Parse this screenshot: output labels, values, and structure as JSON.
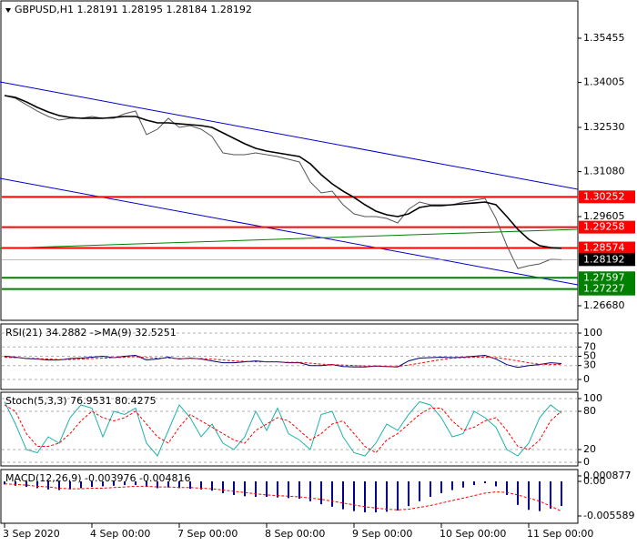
{
  "chart_data": [
    {
      "type": "line",
      "title": "GBPUSD,H1  1.28191 1.28195 1.28184 1.28192",
      "categories": [
        "3 Sep 2020",
        null,
        null,
        null,
        null,
        null,
        null,
        null,
        "4 Sep 00:00",
        null,
        null,
        null,
        null,
        null,
        null,
        null,
        "7 Sep 00:00",
        null,
        null,
        null,
        null,
        null,
        null,
        null,
        "8 Sep 00:00",
        null,
        null,
        null,
        null,
        null,
        null,
        null,
        "9 Sep 00:00",
        null,
        null,
        null,
        null,
        null,
        null,
        null,
        "10 Sep 00:00",
        null,
        null,
        null,
        null,
        null,
        null,
        null,
        "11 Sep 00:00",
        null,
        null,
        null
      ],
      "series": [
        {
          "color": "#555555",
          "values": [
            1.33575,
            1.33485,
            1.33276,
            1.33067,
            1.32888,
            1.32769,
            1.32829,
            1.32829,
            1.32888,
            1.32829,
            1.32829,
            1.32978,
            1.33067,
            1.32291,
            1.3247,
            1.32829,
            1.3253,
            1.3259,
            1.3247,
            1.32232,
            1.31694,
            1.31635,
            1.31635,
            1.31694,
            1.31635,
            1.31575,
            1.31485,
            1.31396,
            1.30739,
            1.30381,
            1.3044,
            1.29993,
            1.29694,
            1.29605,
            1.29605,
            1.29545,
            1.29396,
            1.29843,
            1.30082,
            1.29993,
            1.29993,
            1.29993,
            1.30082,
            1.30142,
            1.30202,
            1.29545,
            1.2865,
            1.27903,
            1.27993,
            1.28052,
            1.28202,
            1.28192
          ]
        },
        {
          "color": "#000000",
          "values": [
            1.33575,
            1.33515,
            1.33366,
            1.33187,
            1.33037,
            1.32918,
            1.32858,
            1.32829,
            1.32829,
            1.32829,
            1.32858,
            1.32888,
            1.32888,
            1.32769,
            1.32679,
            1.32679,
            1.32649,
            1.3262,
            1.3259,
            1.3253,
            1.32351,
            1.32172,
            1.31993,
            1.31843,
            1.31754,
            1.31694,
            1.31635,
            1.31575,
            1.31336,
            1.30978,
            1.30679,
            1.3044,
            1.30232,
            1.29993,
            1.29784,
            1.29664,
            1.29605,
            1.29694,
            1.29903,
            1.29963,
            1.29963,
            1.29993,
            1.30023,
            1.30052,
            1.30082,
            1.29993,
            1.29605,
            1.29187,
            1.28858,
            1.2865,
            1.2859,
            1.2856
          ]
        }
      ],
      "ylim": [
        1.26202,
        1.36709
      ],
      "yticks": [
        1.35455,
        1.34005,
        {
          "value": 1.3253,
          "label": "1.32530"
        },
        {
          "value": 1.3108,
          "label": "1.31080"
        },
        1.29605,
        {
          "value": 1.2668,
          "label": "1.26680"
        }
      ],
      "levels": [
        {
          "value": 1.30252,
          "color": "#ff0000"
        },
        {
          "value": 1.29258,
          "color": "#ff0000"
        },
        {
          "value": 1.28574,
          "color": "#ff0000"
        },
        {
          "value": 1.27597,
          "color": "#008000"
        },
        {
          "value": 1.27227,
          "color": "#008000"
        }
      ],
      "current_price": 1.28192,
      "trendlines": [
        {
          "start": 1.34022,
          "end": 1.305,
          "color": "#0000cc"
        },
        {
          "start": 1.30858,
          "end": 1.27366,
          "color": "#0000cc"
        },
        {
          "start": 1.2856,
          "end": 1.29187,
          "color": "#008000"
        }
      ]
    },
    {
      "type": "line",
      "title": "RSI(21) 34.2882 ->MA(9) 32.5251",
      "series": [
        {
          "color": "#000080",
          "values": [
            50,
            48,
            45,
            44,
            42,
            42,
            45,
            46,
            48,
            50,
            47,
            50,
            52,
            42,
            44,
            48,
            44,
            46,
            44,
            40,
            36,
            36,
            38,
            40,
            38,
            38,
            36,
            36,
            30,
            30,
            32,
            28,
            27,
            27,
            29,
            28,
            27,
            40,
            46,
            47,
            48,
            47,
            48,
            50,
            52,
            44,
            32,
            26,
            30,
            32,
            36,
            34.2882
          ]
        },
        {
          "color": "#ff0000",
          "dashed": true,
          "values": [
            48,
            47,
            46,
            45,
            44,
            43,
            43,
            44,
            45,
            46,
            47,
            48,
            49,
            47,
            46,
            46,
            45,
            45,
            45,
            44,
            42,
            40,
            39,
            38,
            38,
            38,
            37,
            37,
            35,
            33,
            32,
            31,
            30,
            29,
            29,
            28,
            28,
            31,
            35,
            39,
            43,
            46,
            47,
            48,
            48,
            47,
            44,
            40,
            36,
            33,
            32,
            32.5251
          ]
        }
      ],
      "ylim": [
        -21.6,
        121.6
      ],
      "yticks": [
        0,
        30,
        50,
        70,
        100
      ],
      "grid": true
    },
    {
      "type": "line",
      "title": "Stoch(5,3,3) 76.9531 80.4275",
      "series": [
        {
          "color": "#20b2aa",
          "values": [
            95,
            60,
            20,
            15,
            40,
            30,
            70,
            90,
            85,
            40,
            80,
            75,
            85,
            30,
            10,
            50,
            90,
            70,
            40,
            60,
            30,
            20,
            40,
            80,
            50,
            85,
            45,
            35,
            20,
            75,
            80,
            40,
            15,
            10,
            30,
            60,
            50,
            75,
            95,
            90,
            70,
            40,
            45,
            80,
            70,
            55,
            20,
            10,
            30,
            70,
            90,
            76.9531
          ]
        },
        {
          "color": "#ff0000",
          "dashed": true,
          "values": [
            90,
            80,
            45,
            25,
            25,
            30,
            45,
            65,
            80,
            70,
            65,
            70,
            80,
            60,
            40,
            30,
            55,
            75,
            65,
            55,
            45,
            35,
            30,
            50,
            60,
            70,
            65,
            50,
            35,
            45,
            60,
            65,
            45,
            25,
            15,
            35,
            45,
            60,
            75,
            85,
            85,
            65,
            50,
            55,
            65,
            70,
            50,
            25,
            20,
            35,
            65,
            80.4275
          ]
        }
      ],
      "ylim": [
        -5.7,
        111.4
      ],
      "yticks": [
        0,
        20,
        80,
        100
      ],
      "grid": true
    },
    {
      "type": "bar",
      "title": "MACD(12,26,9) -0.003976 -0.004816",
      "series": [
        {
          "type": "bar",
          "color": "#00008b",
          "values": [
            -0.0005,
            -0.0007,
            -0.0009,
            -0.0011,
            -0.0013,
            -0.0014,
            -0.0013,
            -0.0011,
            -0.0009,
            -0.0008,
            -0.0007,
            -0.0006,
            -0.0006,
            -0.0009,
            -0.0011,
            -0.001,
            -0.0011,
            -0.0012,
            -0.0013,
            -0.0015,
            -0.0019,
            -0.0022,
            -0.0024,
            -0.0025,
            -0.0025,
            -0.0026,
            -0.0027,
            -0.0028,
            -0.0032,
            -0.0037,
            -0.0041,
            -0.0045,
            -0.0048,
            -0.005,
            -0.005,
            -0.0049,
            -0.0047,
            -0.004,
            -0.0032,
            -0.0025,
            -0.0019,
            -0.0014,
            -0.001,
            -0.0006,
            -0.0003,
            -0.0008,
            -0.0022,
            -0.0038,
            -0.0046,
            -0.0048,
            -0.0044,
            -0.003976
          ]
        },
        {
          "type": "line",
          "color": "#ff0000",
          "dashed": true,
          "values": [
            -0.0004,
            -0.0005,
            -0.0006,
            -0.0008,
            -0.0009,
            -0.0011,
            -0.0012,
            -0.0012,
            -0.0011,
            -0.0011,
            -0.001,
            -0.0009,
            -0.0008,
            -0.0008,
            -0.0009,
            -0.0009,
            -0.001,
            -0.001,
            -0.0011,
            -0.0012,
            -0.0014,
            -0.0016,
            -0.0018,
            -0.002,
            -0.0022,
            -0.0023,
            -0.0024,
            -0.0025,
            -0.0027,
            -0.0029,
            -0.0032,
            -0.0035,
            -0.0038,
            -0.0041,
            -0.0043,
            -0.0045,
            -0.0046,
            -0.0045,
            -0.0042,
            -0.0039,
            -0.0035,
            -0.0031,
            -0.0027,
            -0.0023,
            -0.0019,
            -0.0017,
            -0.0018,
            -0.0022,
            -0.0027,
            -0.0032,
            -0.004,
            -0.004816
          ]
        }
      ],
      "ylim": [
        -0.006765,
        0.002053
      ],
      "yticks": [
        -0.005589,
        {
          "value": 0,
          "label": "0.00"
        },
        0.000877
      ]
    }
  ]
}
